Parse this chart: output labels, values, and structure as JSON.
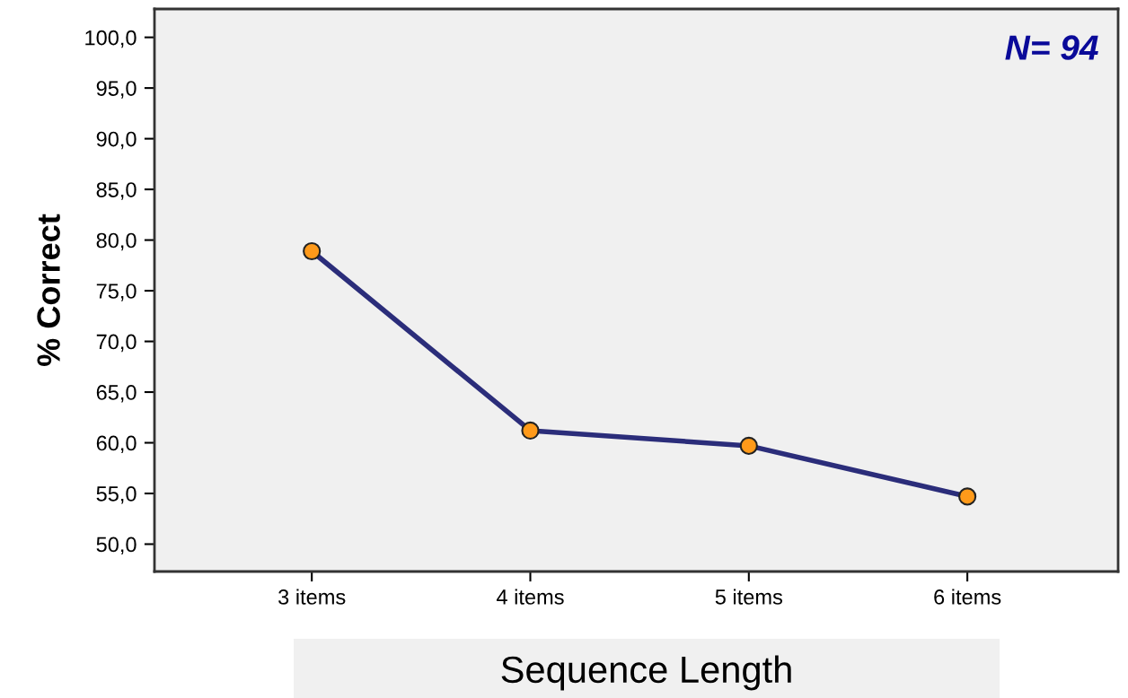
{
  "chart_data": {
    "type": "line",
    "categories": [
      "3 items",
      "4 items",
      "5 items",
      "6 items"
    ],
    "series": [
      {
        "color": "#2b2d7a",
        "values": [
          78.9,
          61.2,
          59.7,
          54.7
        ]
      }
    ],
    "marker": "circle",
    "line_style": "solid",
    "xlabel": "Sequence Length",
    "ylabel": "% Correct",
    "annotations": [
      "N= 94"
    ],
    "ylim": [
      47.3,
      102.8
    ],
    "yticks": [
      {
        "value": 50,
        "label": "50,0"
      },
      {
        "value": 55,
        "label": "55,0"
      },
      {
        "value": 60,
        "label": "60,0"
      },
      {
        "value": 65,
        "label": "65,0"
      },
      {
        "value": 70,
        "label": "70,0"
      },
      {
        "value": 75,
        "label": "75,0"
      },
      {
        "value": 80,
        "label": "80,0"
      },
      {
        "value": 85,
        "label": "85,0"
      },
      {
        "value": 90,
        "label": "90,0"
      },
      {
        "value": 95,
        "label": "95,0"
      },
      {
        "value": 100,
        "label": "100,0"
      }
    ],
    "grid": false
  }
}
